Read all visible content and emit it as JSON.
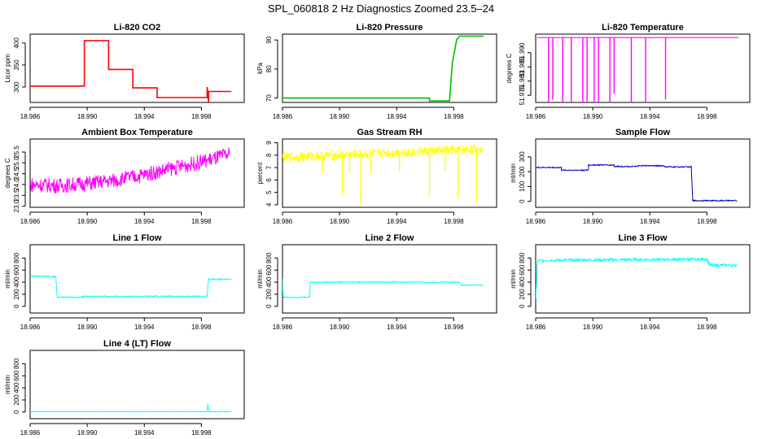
{
  "figure_title": "SPL_060818  2 Hz Diagnostics Zoomed 23.5–24",
  "chart_data": [
    {
      "type": "line",
      "title": "Li-820 CO2",
      "ylabel": "Licor ppm",
      "color": "#ff0000",
      "xlim": [
        18.986,
        19.001
      ],
      "ylim": [
        265,
        420
      ],
      "xticks": [
        18.986,
        18.99,
        18.994,
        18.998
      ],
      "xticklabels": [
        "18.986",
        "18.990",
        "18.994",
        "18.998"
      ],
      "yticks": [
        300,
        350,
        400
      ],
      "yticklabels": [
        "300",
        "350",
        "400"
      ],
      "x": [
        18.986,
        18.9898,
        18.9898,
        18.9915,
        18.9915,
        18.9932,
        18.9932,
        18.9949,
        18.9949,
        18.9984,
        18.9984,
        18.9985,
        18.9985,
        19.0001
      ],
      "y": [
        302,
        302,
        405,
        405,
        340,
        340,
        298,
        298,
        276,
        276,
        300,
        265,
        290,
        290
      ]
    },
    {
      "type": "line",
      "title": "Li-820 Pressure",
      "ylabel": "kPa",
      "color": "#00c000",
      "xlim": [
        18.986,
        19.001
      ],
      "ylim": [
        68.5,
        92
      ],
      "xticks": [
        18.986,
        18.99,
        18.994,
        18.998
      ],
      "xticklabels": [
        "18.986",
        "18.990",
        "18.994",
        "18.998"
      ],
      "yticks": [
        70,
        80,
        90
      ],
      "yticklabels": [
        "70",
        "80",
        "90"
      ],
      "x": [
        18.986,
        18.9963,
        18.9963,
        18.9977,
        18.9979,
        18.9982,
        18.9984,
        19.0001
      ],
      "y": [
        70.0,
        70.0,
        69.0,
        69.0,
        82,
        90,
        91.3,
        91.3
      ]
    },
    {
      "type": "line",
      "title": "Li-820 Temperature",
      "ylabel": "degrees C",
      "color": "#ff00ff",
      "xlim": [
        18.986,
        19.001
      ],
      "ylim": [
        51.9725,
        51.9965
      ],
      "xticks": [
        18.986,
        18.99,
        18.994,
        18.998
      ],
      "xticklabels": [
        "18.986",
        "18.990",
        "18.994",
        "18.998"
      ],
      "yticks": [
        51.975,
        51.98,
        51.985,
        51.99
      ],
      "yticklabels": [
        "51.975",
        "51.980",
        "51.985",
        "51.990"
      ],
      "baseline": 51.9953,
      "dips": [
        {
          "x": 18.9869,
          "low": 51.9725
        },
        {
          "x": 18.9872,
          "low": 51.9735
        },
        {
          "x": 18.9879,
          "low": 51.9725
        },
        {
          "x": 18.9885,
          "low": 51.9725
        },
        {
          "x": 18.9893,
          "low": 51.9725
        },
        {
          "x": 18.9896,
          "low": 51.9725
        },
        {
          "x": 18.9901,
          "low": 51.9725
        },
        {
          "x": 18.9904,
          "low": 51.9725
        },
        {
          "x": 18.9912,
          "low": 51.9725
        },
        {
          "x": 18.9915,
          "low": 51.9755
        },
        {
          "x": 18.9927,
          "low": 51.9725
        },
        {
          "x": 18.9937,
          "low": 51.9725
        },
        {
          "x": 18.9951,
          "low": 51.9735
        }
      ]
    },
    {
      "type": "line",
      "title": "Ambient Box Temperature",
      "ylabel": "degrees C",
      "color": "#ff00ff",
      "xlim": [
        18.986,
        19.001
      ],
      "ylim": [
        22.95,
        26.1
      ],
      "xticks": [
        18.986,
        18.99,
        18.994,
        18.998
      ],
      "xticklabels": [
        "18.986",
        "18.990",
        "18.994",
        "18.998"
      ],
      "yticks": [
        23.0,
        23.5,
        24.0,
        24.5,
        25.0,
        25.5
      ],
      "yticklabels": [
        "23.0",
        "23.5",
        "24.0",
        "24.5",
        "25.0",
        "25.5"
      ],
      "x": [
        18.986,
        18.988,
        18.99,
        18.992,
        18.994,
        18.996,
        18.998,
        19.0
      ],
      "y": [
        24.0,
        23.95,
        24.05,
        24.2,
        24.45,
        24.75,
        25.05,
        25.4
      ],
      "noise_amplitude": 0.35
    },
    {
      "type": "line",
      "title": "Gas Stream RH",
      "ylabel": "percent",
      "color": "#ffff00",
      "xlim": [
        18.986,
        19.001
      ],
      "ylim": [
        3.8,
        9.3
      ],
      "xticks": [
        18.986,
        18.99,
        18.994,
        18.998
      ],
      "xticklabels": [
        "18.986",
        "18.990",
        "18.994",
        "18.998"
      ],
      "yticks": [
        4,
        5,
        6,
        7,
        8,
        9
      ],
      "yticklabels": [
        "4",
        "5",
        "6",
        "7",
        "8",
        "9"
      ],
      "x": [
        18.986,
        18.99,
        18.994,
        18.998,
        19.0
      ],
      "y": [
        7.8,
        8.0,
        8.2,
        8.4,
        8.5
      ],
      "noise_amplitude": 0.4,
      "dips": [
        {
          "x": 18.9888,
          "low": 6.6
        },
        {
          "x": 18.9902,
          "low": 4.8
        },
        {
          "x": 18.9907,
          "low": 6.5
        },
        {
          "x": 18.9915,
          "low": 4.0
        },
        {
          "x": 18.9922,
          "low": 6.5
        },
        {
          "x": 18.9942,
          "low": 6.7
        },
        {
          "x": 18.9963,
          "low": 4.7
        },
        {
          "x": 18.9974,
          "low": 6.8
        },
        {
          "x": 18.9983,
          "low": 4.5
        },
        {
          "x": 18.9996,
          "low": 4.2
        }
      ]
    },
    {
      "type": "line",
      "title": "Sample Flow",
      "ylabel": "ml/min",
      "color": "#0000c0",
      "xlim": [
        18.986,
        19.001
      ],
      "ylim": [
        -40,
        420
      ],
      "xticks": [
        18.986,
        18.99,
        18.994,
        18.998
      ],
      "xticklabels": [
        "18.986",
        "18.990",
        "18.994",
        "18.998"
      ],
      "yticks": [
        0,
        100,
        200,
        300
      ],
      "yticklabels": [
        "0",
        "100",
        "200",
        "300"
      ],
      "x": [
        18.986,
        18.9878,
        18.9878,
        18.9897,
        18.9897,
        18.9915,
        18.9915,
        18.9932,
        18.9932,
        18.995,
        18.995,
        18.9969,
        18.997,
        19.0001
      ],
      "y": [
        228,
        228,
        210,
        210,
        245,
        245,
        235,
        235,
        240,
        240,
        232,
        232,
        5,
        5
      ],
      "noise_amplitude": 4
    },
    {
      "type": "line",
      "title": "Line 1 Flow",
      "ylabel": "ml/min",
      "color": "#00ffff",
      "xlim": [
        18.986,
        19.001
      ],
      "ylim": [
        -110,
        1020
      ],
      "xticks": [
        18.986,
        18.99,
        18.994,
        18.998
      ],
      "xticklabels": [
        "18.986",
        "18.990",
        "18.994",
        "18.998"
      ],
      "yticks": [
        0,
        200,
        400,
        600,
        800
      ],
      "yticklabels": [
        "0",
        "200",
        "400",
        "600",
        "800"
      ],
      "x": [
        18.986,
        18.9878,
        18.9879,
        18.9897,
        18.9897,
        18.9984,
        18.9985,
        19.0001
      ],
      "y": [
        500,
        490,
        150,
        150,
        165,
        165,
        450,
        450
      ],
      "noise_amplitude": 10
    },
    {
      "type": "line",
      "title": "Line 2 Flow",
      "ylabel": "ml/min",
      "color": "#00ffff",
      "xlim": [
        18.986,
        19.001
      ],
      "ylim": [
        -110,
        1020
      ],
      "xticks": [
        18.986,
        18.99,
        18.994,
        18.998
      ],
      "xticklabels": [
        "18.986",
        "18.990",
        "18.994",
        "18.998"
      ],
      "yticks": [
        0,
        200,
        400,
        600,
        800
      ],
      "yticklabels": [
        "0",
        "200",
        "400",
        "600",
        "800"
      ],
      "x": [
        18.986,
        18.98605,
        18.9861,
        18.9879,
        18.98795,
        18.9984,
        18.9985,
        19.0001
      ],
      "y": [
        450,
        150,
        150,
        150,
        400,
        400,
        350,
        350
      ],
      "noise_amplitude": 8
    },
    {
      "type": "line",
      "title": "Line 3 Flow",
      "ylabel": "ml/min",
      "color": "#00ffff",
      "xlim": [
        18.986,
        19.001
      ],
      "ylim": [
        -110,
        1020
      ],
      "xticks": [
        18.986,
        18.99,
        18.994,
        18.998
      ],
      "xticklabels": [
        "18.986",
        "18.990",
        "18.994",
        "18.998"
      ],
      "yticks": [
        0,
        200,
        400,
        600,
        800
      ],
      "yticklabels": [
        "0",
        "200",
        "400",
        "600",
        "800"
      ],
      "x": [
        18.986,
        18.9861,
        18.9862,
        18.998,
        18.9982,
        19.0001
      ],
      "y": [
        120,
        680,
        760,
        780,
        680,
        680
      ],
      "noise_amplitude": 25
    },
    {
      "type": "line",
      "title": "Line 4 (LT) Flow",
      "ylabel": "ml/min",
      "color": "#00ffff",
      "xlim": [
        18.986,
        19.001
      ],
      "ylim": [
        -110,
        1020
      ],
      "xticks": [
        18.986,
        18.99,
        18.994,
        18.998
      ],
      "xticklabels": [
        "18.986",
        "18.990",
        "18.994",
        "18.998"
      ],
      "yticks": [
        0,
        200,
        400,
        600,
        800
      ],
      "yticklabels": [
        "0",
        "200",
        "400",
        "600",
        "800"
      ],
      "x": [
        18.986,
        18.9984,
        18.99845,
        18.9985,
        18.99855,
        19.0001
      ],
      "y": [
        5,
        5,
        130,
        40,
        5,
        5
      ],
      "noise_amplitude": 3
    }
  ]
}
